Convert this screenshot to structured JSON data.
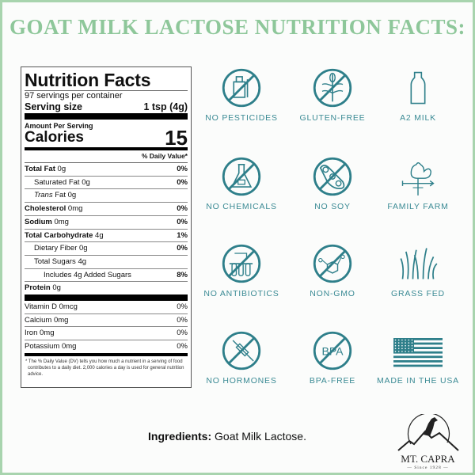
{
  "title": "GOAT MILK LACTOSE NUTRITION FACTS:",
  "nutrition": {
    "heading": "Nutrition Facts",
    "servings": "97 servings per container",
    "serving_size_label": "Serving size",
    "serving_size_value": "1 tsp (4g)",
    "amount_per_serving": "Amount Per Serving",
    "calories_label": "Calories",
    "calories_value": "15",
    "dv_header": "% Daily Value*",
    "rows": [
      {
        "name": "Total Fat",
        "amt": "0g",
        "dv": "0%"
      },
      {
        "name": "Saturated Fat 0g",
        "amt": "",
        "dv": "0%"
      },
      {
        "name": "Trans",
        "amt": "Fat 0g",
        "dv": ""
      },
      {
        "name": "Cholesterol",
        "amt": "0mg",
        "dv": "0%"
      },
      {
        "name": "Sodium",
        "amt": "0mg",
        "dv": "0%"
      },
      {
        "name": "Total Carbohydrate",
        "amt": "4g",
        "dv": "1%"
      },
      {
        "name": "Dietary Fiber 0g",
        "amt": "",
        "dv": "0%"
      },
      {
        "name": "Total Sugars 4g",
        "amt": "",
        "dv": ""
      },
      {
        "name": "Includes 4g Added Sugars",
        "amt": "",
        "dv": "8%"
      },
      {
        "name": "Protein",
        "amt": "0g",
        "dv": ""
      },
      {
        "name": "Vitamin D 0mcg",
        "amt": "",
        "dv": "0%"
      },
      {
        "name": "Calcium 0mg",
        "amt": "",
        "dv": "0%"
      },
      {
        "name": "Iron 0mg",
        "amt": "",
        "dv": "0%"
      },
      {
        "name": "Potassium 0mg",
        "amt": "",
        "dv": "0%"
      }
    ],
    "footnote": "* The % Daily Value (DV) tells you how much a nutrient in a serving of food contributes to a daily diet. 2,000 calories a day is used for general nutrition advice."
  },
  "icon_color": "#2e7f8a",
  "badges": [
    {
      "label": "NO PESTICIDES",
      "icon": "pesticide-bottle-icon"
    },
    {
      "label": "GLUTEN-FREE",
      "icon": "wheat-icon"
    },
    {
      "label": "A2 MILK",
      "icon": "milk-bottle-icon"
    },
    {
      "label": "NO CHEMICALS",
      "icon": "flask-icon"
    },
    {
      "label": "NO SOY",
      "icon": "soybean-icon"
    },
    {
      "label": "FAMILY FARM",
      "icon": "rooster-weathervane-icon"
    },
    {
      "label": "NO ANTIBIOTICS",
      "icon": "test-tubes-icon"
    },
    {
      "label": "NON-GMO",
      "icon": "molecule-icon"
    },
    {
      "label": "GRASS FED",
      "icon": "grass-icon"
    },
    {
      "label": "NO HORMONES",
      "icon": "syringe-icon"
    },
    {
      "label": "BPA-FREE",
      "icon": "bpa-icon",
      "text": "BPA"
    },
    {
      "label": "MADE IN THE USA",
      "icon": "us-flag-icon"
    }
  ],
  "ingredients": {
    "label": "Ingredients:",
    "value": " Goat Milk Lactose."
  },
  "logo": {
    "name": "MT. CAPRA",
    "since": "— Since 1928 —"
  }
}
